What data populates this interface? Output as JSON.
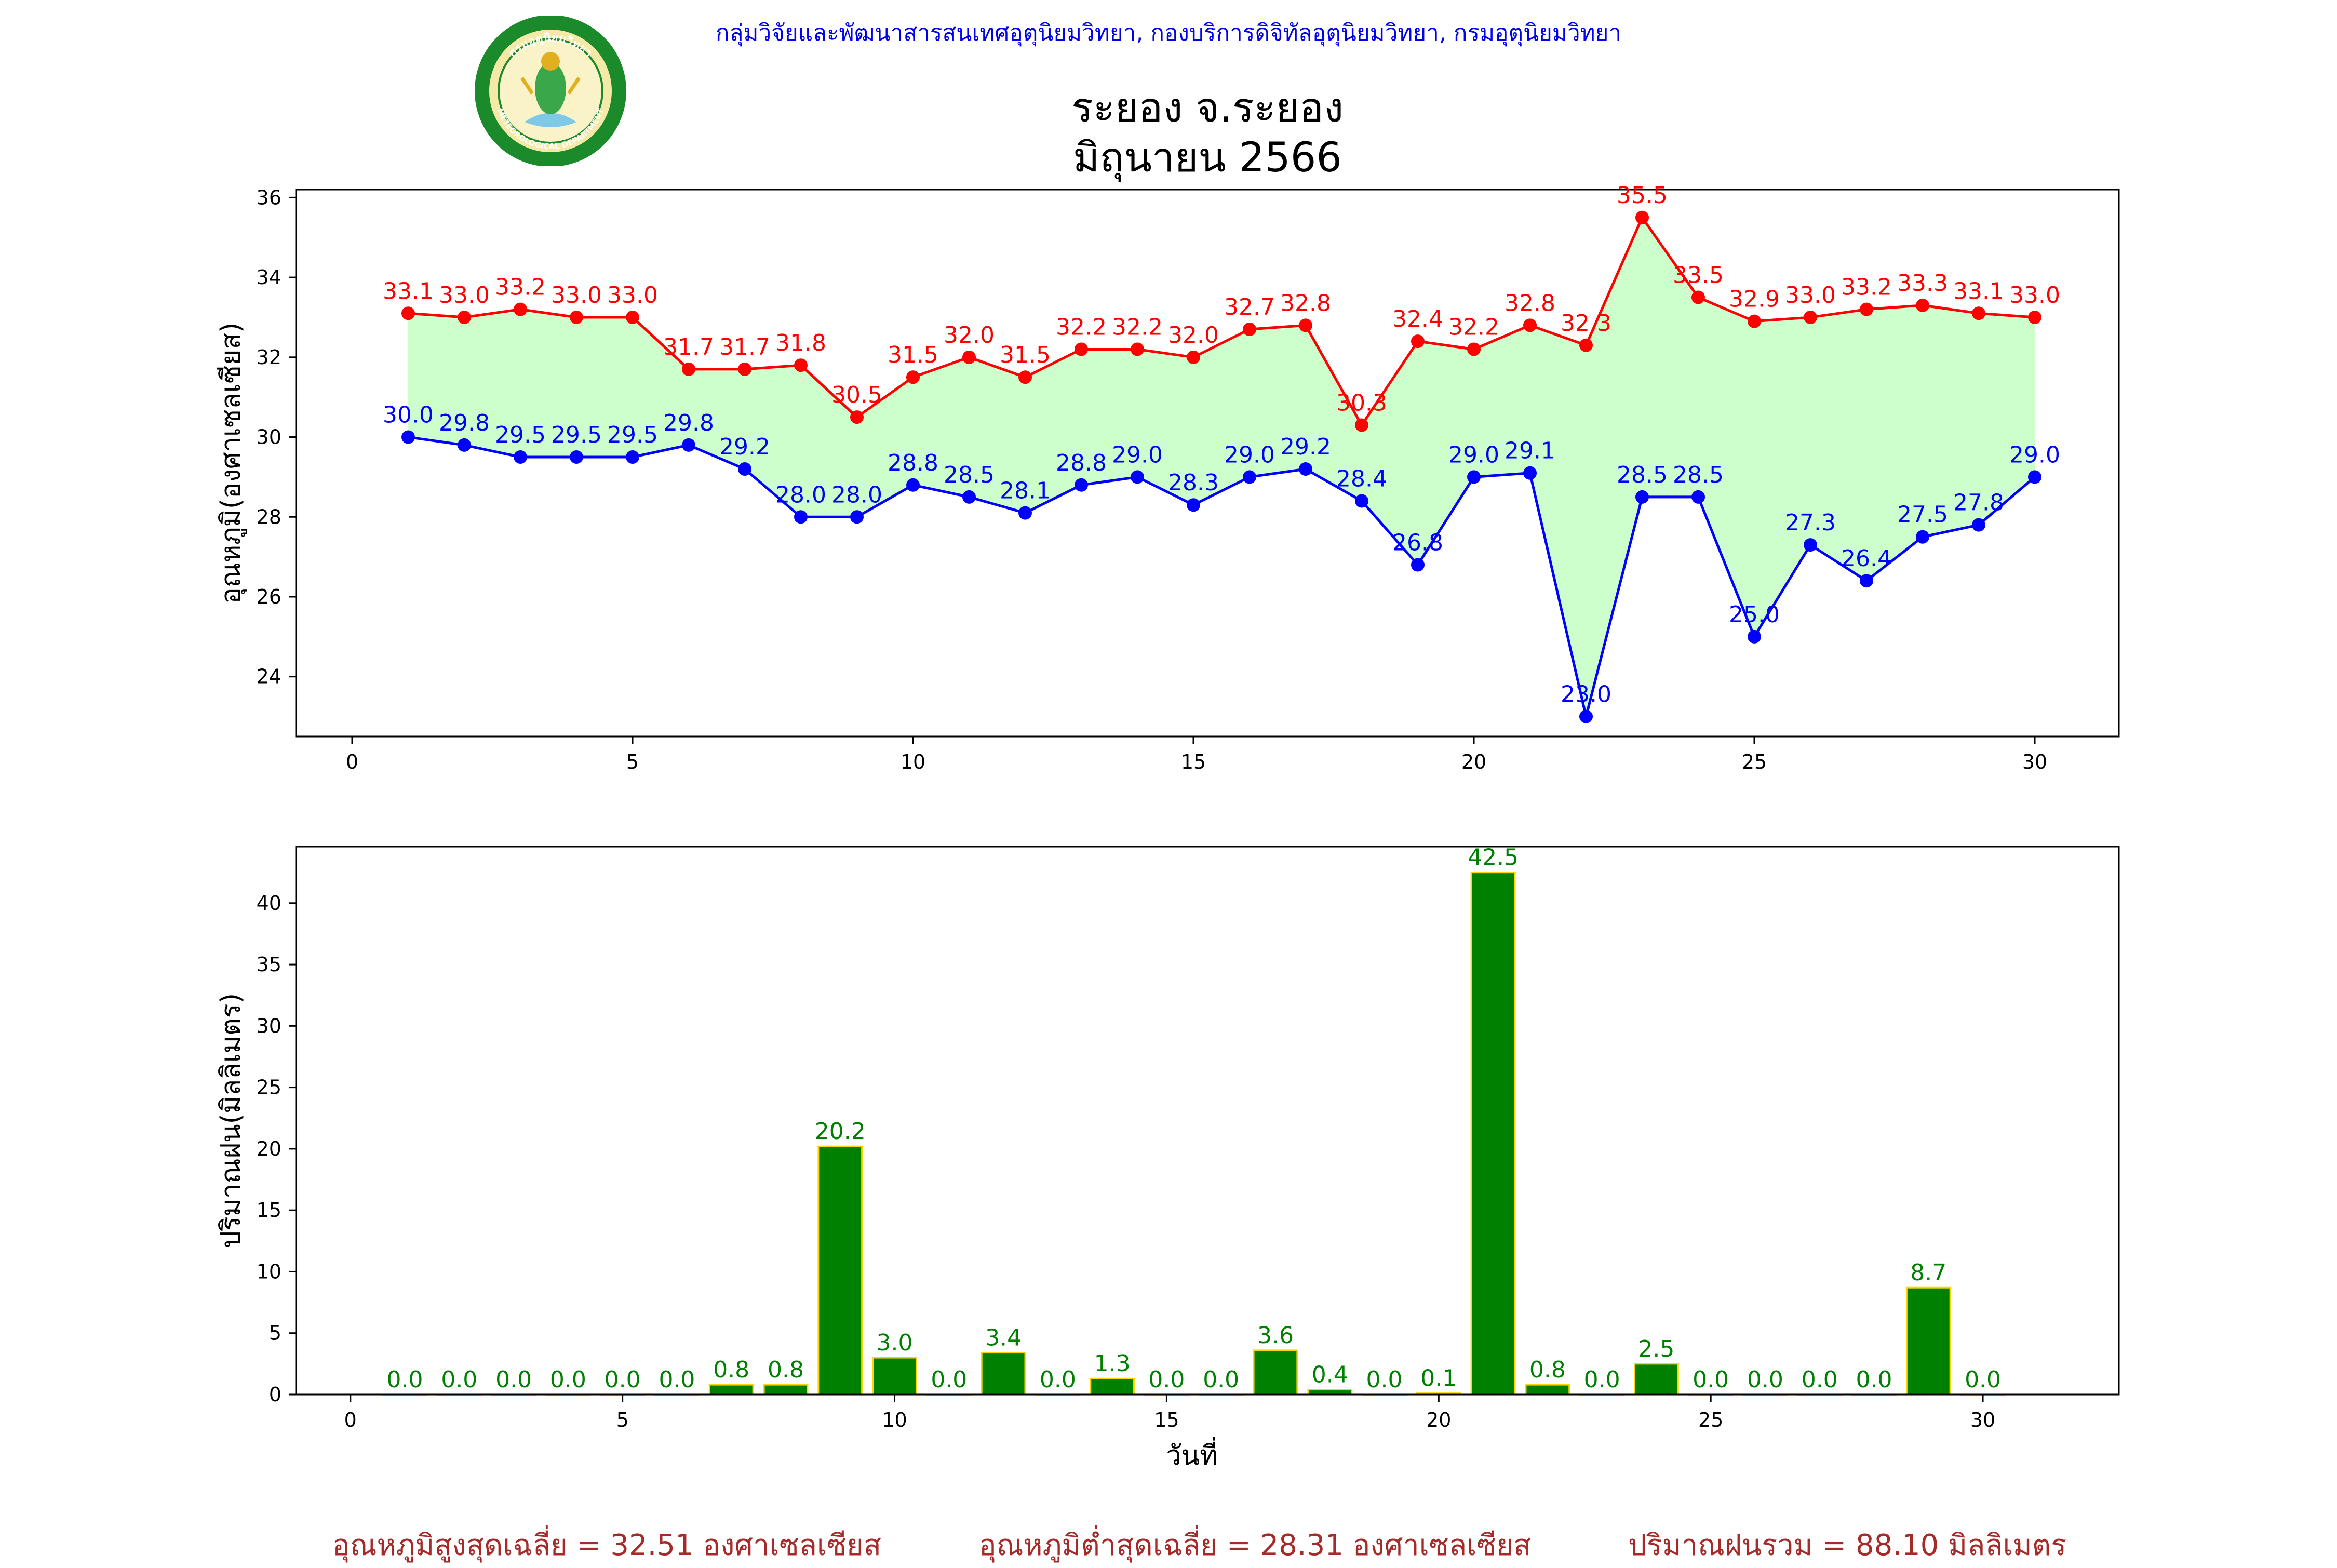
{
  "header": {
    "org_text": "กลุ่มวิจัยและพัฒนาสารสนเทศอุตุนิยมวิทยา, กองบริการดิจิทัลอุตุนิยมวิทยา, กรมอุตุนิยมวิทยา",
    "logo_icon": "meteorological-department-seal-icon",
    "logo_top_text": "กรมอุตุนิยมวิทยา",
    "logo_bottom_text": "METEOROLOGICAL DEPARTMENT"
  },
  "title_line1": "ระยอง จ.ระยอง",
  "title_line2": "มิถุนายน 2566",
  "chart_data": [
    {
      "type": "line",
      "ylabel": "อุณหภูมิ(องศาเซลเซียส)",
      "xlabel": "",
      "xlim": [
        -1,
        31.5
      ],
      "ylim": [
        22.5,
        36.2
      ],
      "xticks": [
        0,
        5,
        10,
        15,
        20,
        25,
        30
      ],
      "yticks": [
        24,
        26,
        28,
        30,
        32,
        34,
        36
      ],
      "fill_between": true,
      "fill_color": "#ccffcc",
      "x": [
        1,
        2,
        3,
        4,
        5,
        6,
        7,
        8,
        9,
        10,
        11,
        12,
        13,
        14,
        15,
        16,
        17,
        18,
        19,
        20,
        21,
        22,
        23,
        24,
        25,
        26,
        27,
        28,
        29,
        30
      ],
      "series": [
        {
          "color": "#ff0000",
          "values": [
            33.1,
            33.0,
            33.2,
            33.0,
            33.0,
            31.7,
            31.7,
            31.8,
            30.5,
            31.5,
            32.0,
            31.5,
            32.2,
            32.2,
            32.0,
            32.7,
            32.8,
            30.3,
            32.4,
            32.2,
            32.8,
            32.3,
            35.5,
            33.5,
            32.9,
            33.0,
            33.2,
            33.3,
            33.1,
            33.0
          ]
        },
        {
          "color": "#0000ff",
          "values": [
            30.0,
            29.8,
            29.5,
            29.5,
            29.5,
            29.8,
            29.2,
            28.0,
            28.0,
            28.8,
            28.5,
            28.1,
            28.8,
            29.0,
            28.3,
            29.0,
            29.2,
            28.4,
            26.8,
            29.0,
            29.1,
            23.0,
            28.5,
            28.5,
            25.0,
            27.3,
            26.4,
            27.5,
            27.8,
            29.0
          ]
        }
      ]
    },
    {
      "type": "bar",
      "ylabel": "ปริมาณฝน(มิลลิเมตร)",
      "xlabel": "วันที่",
      "xlim": [
        -1,
        32.5
      ],
      "ylim": [
        0,
        44.6
      ],
      "xticks": [
        0,
        5,
        10,
        15,
        20,
        25,
        30
      ],
      "yticks": [
        0,
        5,
        10,
        15,
        20,
        25,
        30,
        35,
        40
      ],
      "bar_color": "#008000",
      "bar_edge_color": "#ffd700",
      "label_color": "#008000",
      "x": [
        1,
        2,
        3,
        4,
        5,
        6,
        7,
        8,
        9,
        10,
        11,
        12,
        13,
        14,
        15,
        16,
        17,
        18,
        19,
        20,
        21,
        22,
        23,
        24,
        25,
        26,
        27,
        28,
        29,
        30
      ],
      "values": [
        0.0,
        0.0,
        0.0,
        0.0,
        0.0,
        0.0,
        0.8,
        0.8,
        20.2,
        3.0,
        0.0,
        3.4,
        0.0,
        1.3,
        0.0,
        0.0,
        3.6,
        0.4,
        0.0,
        0.1,
        42.5,
        0.8,
        0.0,
        2.5,
        0.0,
        0.0,
        0.0,
        0.0,
        8.7,
        0.0
      ]
    }
  ],
  "footer": {
    "avg_max": "อุณหภูมิสูงสุดเฉลี่ย = 32.51 องศาเซลเซียส",
    "avg_min": "อุณหภูมิต่ำสุดเฉลี่ย = 28.31 องศาเซลเซียส",
    "total_rain": "ปริมาณฝนรวม = 88.10 มิลลิเมตร"
  }
}
